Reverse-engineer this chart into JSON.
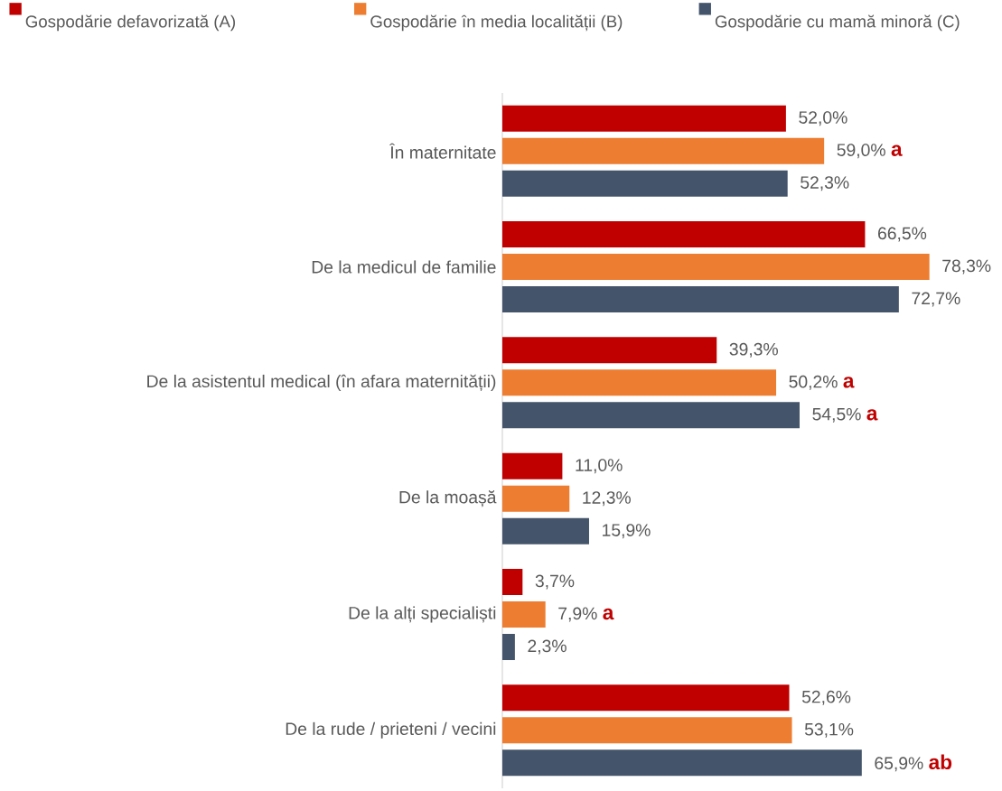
{
  "chart_data": {
    "type": "bar",
    "orientation": "horizontal",
    "legend": "top",
    "data_labels": true,
    "categories": [
      "În maternitate",
      "De la medicul de familie",
      "De la asistentul medical (în afara maternității)",
      "De la moașă",
      "De la alți specialiști",
      "De la rude / prieteni / vecini"
    ],
    "series": [
      {
        "name": "Gospodărie defavorizată (A)",
        "color": "#c00000",
        "values": [
          52.0,
          66.5,
          39.3,
          11.0,
          3.7,
          52.6
        ],
        "value_labels": [
          "52,0%",
          "66,5%",
          "39,3%",
          "11,0%",
          "3,7%",
          "52,6%"
        ]
      },
      {
        "name": "Gospodărie în media localității (B)",
        "color": "#ed7d31",
        "values": [
          59.0,
          78.3,
          50.2,
          12.3,
          7.9,
          53.1
        ],
        "value_labels": [
          "59,0% **a**",
          "78,3%",
          "50,2% **a**",
          "12,3%",
          "7,9% **a**",
          "53,1%"
        ]
      },
      {
        "name": "Gospodărie cu mamă minoră (C)",
        "color": "#44546a",
        "values": [
          52.3,
          72.7,
          54.5,
          15.9,
          2.3,
          65.9
        ],
        "value_labels": [
          "52,3%",
          "72,7%",
          "54,5% **a**",
          "15,9%",
          "2,3%",
          "65,9% **ab**"
        ]
      }
    ]
  }
}
